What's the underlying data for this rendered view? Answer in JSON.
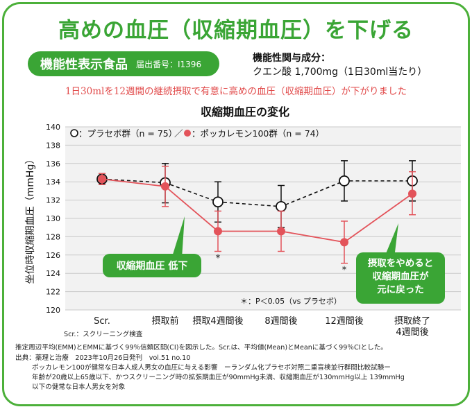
{
  "title": "高めの血圧（収縮期血圧）を下げる",
  "label": {
    "main": "機能性表示食品",
    "reg": "届出番号：I1396"
  },
  "ingredient": {
    "head": "機能性関与成分：",
    "value": "クエン酸 1,700mg（1日30ml当たり）"
  },
  "claim": "1日30mlを12週間の継続摂取で有意に高めの血圧（収縮期血圧）が下がりました",
  "colors": {
    "green": "#3aa535",
    "red": "#e3535a",
    "black": "#111111"
  },
  "chart_data": {
    "type": "line",
    "title": "収縮期血圧の変化",
    "ylabel": "坐位時収縮期血圧（mmHg）",
    "xlabel": "",
    "ylim": [
      120,
      140
    ],
    "yticks": [
      120,
      122,
      124,
      126,
      128,
      130,
      132,
      134,
      136,
      138,
      140
    ],
    "grid": true,
    "categories": [
      "Scr.",
      "摂取前",
      "摂取4週間後",
      "8週間後",
      "12週間後",
      "摂取終了\n4週間後"
    ],
    "legend": {
      "placebo": "：プラセボ群（n = 75）",
      "separator": "／",
      "lemon": "：ポッカレモン100群（n = 74）"
    },
    "series": [
      {
        "name": "プラセボ群（n = 75）",
        "style": "dashed",
        "marker": "open-circle",
        "values": [
          134.3,
          133.9,
          131.8,
          131.3,
          134.1,
          134.1
        ],
        "ci_low": [
          133.7,
          131.7,
          129.6,
          129.0,
          131.9,
          131.9
        ],
        "ci_high": [
          134.9,
          136.0,
          134.0,
          133.6,
          136.3,
          136.3
        ]
      },
      {
        "name": "ポッカレモン100群（n = 74）",
        "style": "solid",
        "marker": "filled-circle",
        "values": [
          134.3,
          133.5,
          128.6,
          128.6,
          127.4,
          132.7
        ],
        "ci_low": [
          133.7,
          131.3,
          126.4,
          126.4,
          125.1,
          130.4
        ],
        "ci_high": [
          134.9,
          135.7,
          130.8,
          130.8,
          129.7,
          135.1
        ]
      }
    ],
    "significance_marks": [
      {
        "index": 2,
        "text": "*"
      },
      {
        "index": 4,
        "text": "*"
      }
    ],
    "callouts": {
      "left": "収縮期血圧 低下",
      "right": [
        "摂取をやめると",
        "収縮期血圧が",
        "元に戻った"
      ]
    },
    "note": "＊：P＜0.05（vs プラセボ）"
  },
  "footnotes": {
    "scr": "Scr.：スクリーニング検査",
    "ci": "推定周辺平均(EMM)とEMMに基づく99％信頼区間(CI)を図示した。Scr.は、平均値(Mean)とMeanに基づく99％CIとした。",
    "source": "出典：薬理と治療　2023年10月26日発刊　vol.51 no.10",
    "study1": "ポッカレモン100が健常な日本人成人男女の血圧に与える影響　ーランダム化プラセボ対照二重盲検並行群間比較試験ー",
    "study2": "年齢が20歳以上65歳以下、かつスクリーニング時の拡張期血圧が90mmHg未満、収縮期血圧が130mmHg以上 139mmHg",
    "study3": "以下の健常な日本人男女を対象"
  }
}
